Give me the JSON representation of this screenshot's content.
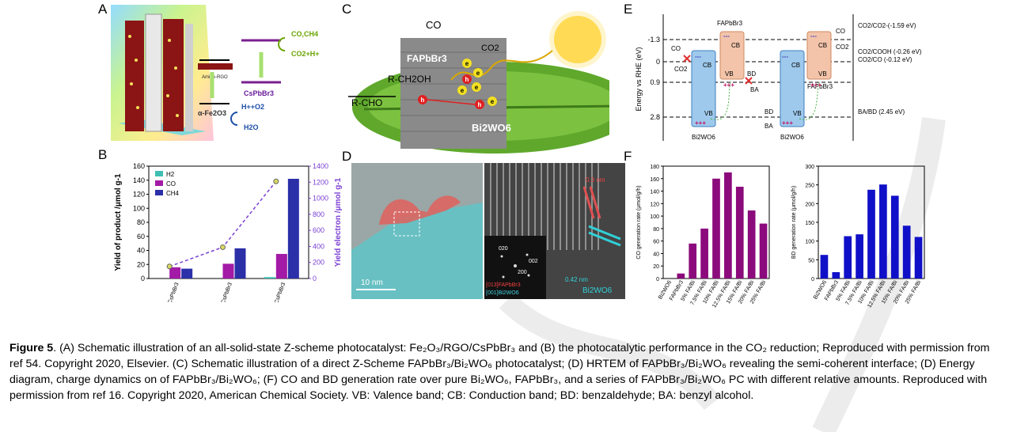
{
  "panels": {
    "A": {
      "letter": "A",
      "labels": {
        "amine_rgo": "Amine-RGO",
        "cspbbr3": "CsPbBr3",
        "fe2o3": "α-Fe2O3",
        "co_ch4": "CO,CH4",
        "co2_h": "CO2+H+",
        "h_o2": "H++O2",
        "h2o": "H2O"
      }
    },
    "B": {
      "letter": "B"
    },
    "C": {
      "letter": "C",
      "labels": {
        "co_top": "CO",
        "co_right": "CO2",
        "fapbbr3": "FAPbBr3",
        "rch2oh": "R-CH2OH",
        "rcho": "R-CHO",
        "bi2wo6": "Bi2WO6",
        "e": "e",
        "h": "h"
      }
    },
    "D": {
      "letter": "D",
      "labels": {
        "scale": "10 nm",
        "d1": "0.3 nm",
        "fft1": "020",
        "fft2": "002",
        "fft3": "200",
        "fft4": "[013]FAPbBr3",
        "fft5": "[001]Bi2WO6",
        "d2": "0.42 nm",
        "d3": "Bi2WO6"
      }
    },
    "E": {
      "letter": "E",
      "ylabel": "Energy vs RHE (eV)",
      "ticks": [
        "-1.3",
        "0",
        "0.9",
        "2.8"
      ],
      "right_labels": [
        "CO2/CO2-(-1.59 eV)",
        "CO2/COOH (-0.26 eV)",
        "CO2/CO (-0.12 eV)",
        "BA/BD (2.45 eV)"
      ],
      "band": {
        "cb": "CB",
        "vb": "VB",
        "bi2wo6": "Bi2WO6",
        "fapbbr3": "FAPbBr3",
        "co": "CO",
        "co2": "CO2",
        "bd": "BD",
        "ba": "BA",
        "plus": "+++",
        "minus": "---"
      }
    },
    "F": {
      "letter": "F"
    }
  },
  "chart_data": [
    {
      "type": "bar",
      "title": "",
      "categories": [
        "CsPbBr3",
        "α-Fe2O3/CsPbBr3",
        "α-Fe2O3/Amine-RGO/CsPbBr3"
      ],
      "series": [
        {
          "name": "H2",
          "values": [
            0,
            0,
            2
          ],
          "color": "#3fbfb3"
        },
        {
          "name": "CO",
          "values": [
            16,
            21,
            35
          ],
          "color": "#a21aa6"
        },
        {
          "name": "CH4",
          "values": [
            14,
            43,
            142
          ],
          "color": "#2b2fa8"
        }
      ],
      "ylabel": "Yield of product /μmol g-1",
      "ylim": [
        0,
        160
      ],
      "yticks": [
        0,
        20,
        40,
        60,
        80,
        100,
        120,
        140,
        160
      ],
      "y2label": "Yield electron /μmol g-1",
      "y2lim": [
        0,
        1400
      ],
      "y2ticks": [
        0,
        200,
        400,
        600,
        800,
        1000,
        1200,
        1400
      ],
      "line": {
        "values": [
          150,
          390,
          1210
        ],
        "color": "#7b3fd3"
      },
      "legend": "top-left"
    },
    {
      "type": "bar",
      "categories": [
        "Bi2WO6",
        "FAPbBr3",
        "5% FA/Bi",
        "7.5% FA/Bi",
        "10% FA/Bi",
        "12.5% FA/Bi",
        "15% FA/Bi",
        "20% FA/Bi",
        "25% FA/Bi"
      ],
      "values": [
        0,
        8,
        56,
        80,
        160,
        170,
        147,
        109,
        88
      ],
      "ylabel": "CO generation rate (μmol/g/h)",
      "ylim": [
        0,
        180
      ],
      "yticks": [
        0,
        20,
        40,
        60,
        80,
        100,
        120,
        140,
        160,
        180
      ],
      "color": "#8b0a7c"
    },
    {
      "type": "bar",
      "categories": [
        "Bi2WO6",
        "FAPbBr3",
        "5% FA/Bi",
        "7.5% FA/Bi",
        "10% FA/Bi",
        "12.5% FA/Bi",
        "15% FA/Bi",
        "20% FA/Bi",
        "25% FA/Bi"
      ],
      "values": [
        63,
        17,
        113,
        118,
        237,
        251,
        221,
        141,
        111
      ],
      "ylabel": "BD generation rate (μmol/g/h)",
      "ylim": [
        0,
        300
      ],
      "yticks": [
        0,
        50,
        100,
        150,
        200,
        250,
        300
      ],
      "color": "#1010c8"
    }
  ],
  "caption": {
    "lead": "Figure 5",
    "text": ". (A) Schematic illustration of an all-solid-state Z-scheme photocatalyst: Fe₂O₃/RGO/CsPbBr₃ and (B) the photocatalytic performance in the CO₂ reduction; Reproduced with permission from ref 54. Copyright 2020, Elsevier. (C) Schematic illustration of a direct Z-Scheme FAPbBr₃/Bi₂WO₆ photocatalyst; (D) HRTEM of FAPbBr₃/Bi₂WO₆ revealing the semi-coherent interface; (D) Energy diagram, charge dynamics on of FAPbBr₃/Bi₂WO₆; (F) CO and BD generation rate over pure Bi₂WO₆, FAPbBr₃, and a series of FAPbBr₃/Bi₂WO₆ PC with different relative amounts. Reproduced with permission from ref 16. Copyright 2020, American Chemical Society. VB: Valence band; CB: Conduction band; BD: benzaldehyde; BA: benzyl alcohol."
  }
}
